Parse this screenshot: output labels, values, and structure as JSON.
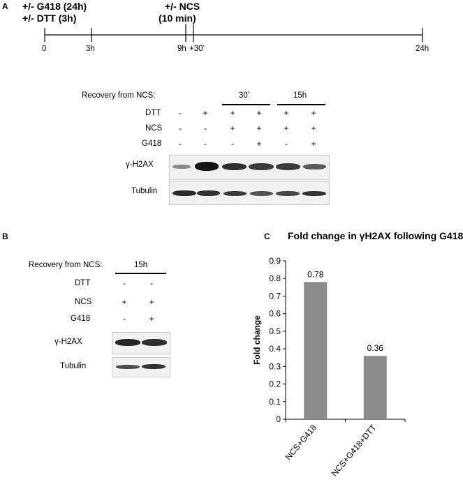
{
  "panel_a": {
    "letter": "A",
    "treatment_g418": "+/- G418 (24h)",
    "treatment_dtt": "+/- DTT (3h)",
    "treatment_ncs": "+/- NCS",
    "treatment_ncs_time": "(10 min)",
    "timeline_ticks": [
      "0",
      "3h",
      "9h",
      "+30’",
      "24h"
    ],
    "recovery_label": "Recovery from NCS:",
    "recovery_groups": [
      "30’",
      "15h"
    ],
    "row_labels": [
      "DTT",
      "NCS",
      "G418"
    ],
    "rows": [
      [
        "-",
        "+",
        "+",
        "+",
        "+",
        "+"
      ],
      [
        "-",
        "-",
        "+",
        "+",
        "+",
        "+"
      ],
      [
        "-",
        "-",
        "-",
        "+",
        "-",
        "+"
      ]
    ],
    "blot_labels": [
      "γ-H2AX",
      "Tubulin"
    ]
  },
  "panel_b": {
    "letter": "B",
    "recovery_label": "Recovery from NCS:",
    "recovery_group": "15h",
    "row_labels": [
      "DTT",
      "NCS",
      "G418"
    ],
    "rows": [
      [
        "-",
        "-"
      ],
      [
        "+",
        "+"
      ],
      [
        "-",
        "+"
      ]
    ],
    "blot_labels": [
      "γ-H2AX",
      "Tubulin"
    ]
  },
  "panel_c": {
    "letter": "C",
    "bar_color": "#8c8c8c"
  },
  "chart_data": {
    "type": "bar",
    "title": "Fold change in γH2AX following G418",
    "categories": [
      "NCS+G418",
      "NCS+G418+DTT"
    ],
    "values": [
      0.78,
      0.36
    ],
    "data_labels": [
      "0.78",
      "0.36"
    ],
    "xlabel": "",
    "ylabel": "Fold change",
    "ylim": [
      0,
      0.9
    ],
    "yticks": [
      "0",
      "0.1",
      "0.2",
      "0.3",
      "0.4",
      "0.5",
      "0.6",
      "0.7",
      "0.8",
      "0.9"
    ],
    "grid": false,
    "legend": "none"
  }
}
